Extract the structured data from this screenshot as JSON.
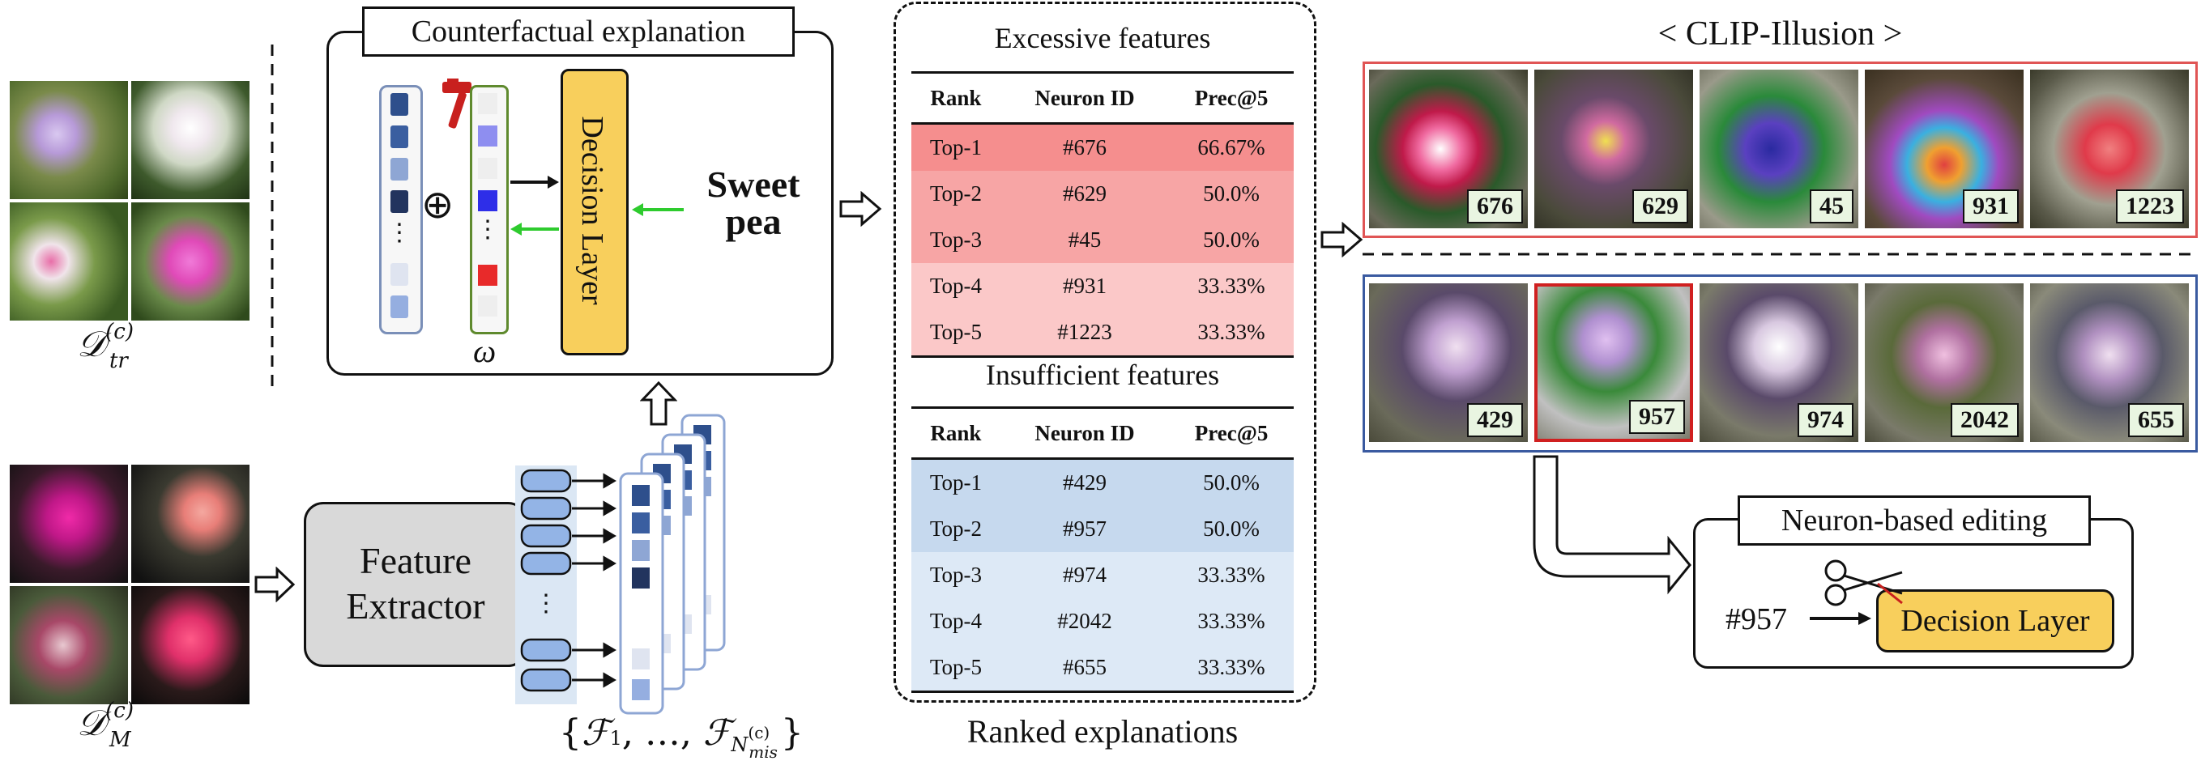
{
  "counterfactual": {
    "title": "Counterfactual explanation",
    "oplus": "⊕",
    "omega": "ω",
    "decision_layer": "Decision Layer",
    "class_label_1": "Sweet",
    "class_label_2": "pea"
  },
  "datasets": {
    "train_label": "𝒟",
    "train_sup": "(c)",
    "train_sub": "tr",
    "mis_label": "𝒟",
    "mis_sup": "(c)",
    "mis_sub": "M"
  },
  "feature_extractor": {
    "line1": "Feature",
    "line2": "Extractor"
  },
  "feature_set": {
    "open": "{",
    "f1": "ℱ",
    "f1_sub": "1",
    "mid": ", …, ",
    "fn": "ℱ",
    "fn_sub": "N",
    "fn_sup": "(c)",
    "fn_subsub": "mis",
    "close": "}"
  },
  "excessive": {
    "title": "Excessive features",
    "headers": [
      "Rank",
      "Neuron ID",
      "Prec@5"
    ],
    "rows": [
      [
        "Top-1",
        "#676",
        "66.67%"
      ],
      [
        "Top-2",
        "#629",
        "50.0%"
      ],
      [
        "Top-3",
        "#45",
        "50.0%"
      ],
      [
        "Top-4",
        "#931",
        "33.33%"
      ],
      [
        "Top-5",
        "#1223",
        "33.33%"
      ]
    ],
    "row_colors": [
      "#f58e8e",
      "#f7a5a5",
      "#f7a5a5",
      "#fbc8c8",
      "#fbc8c8"
    ]
  },
  "insufficient": {
    "title": "Insufficient features",
    "headers": [
      "Rank",
      "Neuron ID",
      "Prec@5"
    ],
    "rows": [
      [
        "Top-1",
        "#429",
        "50.0%"
      ],
      [
        "Top-2",
        "#957",
        "50.0%"
      ],
      [
        "Top-3",
        "#974",
        "33.33%"
      ],
      [
        "Top-4",
        "#2042",
        "33.33%"
      ],
      [
        "Top-5",
        "#655",
        "33.33%"
      ]
    ],
    "row_colors": [
      "#c6d9ee",
      "#c6d9ee",
      "#dde9f6",
      "#dde9f6",
      "#dde9f6"
    ]
  },
  "ranked_caption": "Ranked explanations",
  "clip_illusion": {
    "title": "< CLIP-Illusion >",
    "excessive_ids": [
      "676",
      "629",
      "45",
      "931",
      "1223"
    ],
    "insufficient_ids": [
      "429",
      "957",
      "974",
      "2042",
      "655"
    ]
  },
  "editing": {
    "title": "Neuron-based editing",
    "neuron": "#957",
    "decision_layer": "Decision Layer"
  },
  "colors": {
    "decision_layer": "#f8cf5c",
    "excessive_border": "#e05555",
    "insufficient_border": "#3a5aa0",
    "feature_extractor_fill": "#d9d9d9",
    "label_fill": "#e9f5e1"
  }
}
